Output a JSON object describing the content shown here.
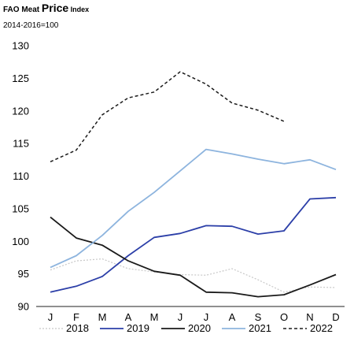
{
  "chart_data": {
    "type": "line",
    "title_parts": [
      "FAO Meat ",
      "Price",
      " Index"
    ],
    "subtitle": "2014-2016=100",
    "categories": [
      "J",
      "F",
      "M",
      "A",
      "M",
      "J",
      "J",
      "A",
      "S",
      "O",
      "N",
      "D"
    ],
    "ylim": [
      90,
      130
    ],
    "yticks": [
      90,
      95,
      100,
      105,
      110,
      115,
      120,
      125,
      130
    ],
    "grid": false,
    "legend_position": "bottom",
    "series": [
      {
        "name": "2018",
        "color": "#c8c8c8",
        "dash": "2,2",
        "width": 1.2,
        "values": [
          95.6,
          97.0,
          97.3,
          95.8,
          95.3,
          94.9,
          94.8,
          95.8,
          94.1,
          92.2,
          93.0,
          92.9
        ]
      },
      {
        "name": "2019",
        "color": "#2c3fa8",
        "dash": "",
        "width": 1.8,
        "values": [
          92.2,
          93.1,
          94.6,
          97.8,
          100.6,
          101.2,
          102.4,
          102.3,
          101.1,
          101.6,
          106.5,
          106.7
        ]
      },
      {
        "name": "2020",
        "color": "#1a1a1a",
        "dash": "",
        "width": 1.8,
        "values": [
          103.7,
          100.5,
          99.4,
          97.0,
          95.4,
          94.8,
          92.2,
          92.1,
          91.5,
          91.8,
          93.3,
          94.9
        ]
      },
      {
        "name": "2021",
        "color": "#8db4de",
        "dash": "",
        "width": 1.8,
        "values": [
          96.0,
          97.8,
          100.9,
          104.6,
          107.5,
          110.8,
          114.1,
          113.4,
          112.6,
          111.9,
          112.5,
          111.0
        ]
      },
      {
        "name": "2022",
        "color": "#1a1a1a",
        "dash": "4,3",
        "width": 1.5,
        "values": [
          112.2,
          114.0,
          119.4,
          122.0,
          122.9,
          126.0,
          124.1,
          121.2,
          120.1,
          118.4,
          null,
          null
        ]
      }
    ]
  }
}
